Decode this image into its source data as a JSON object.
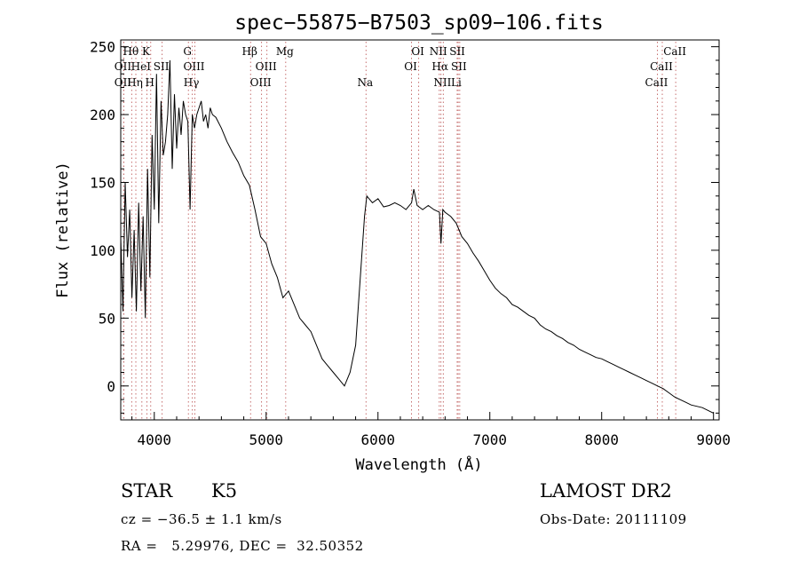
{
  "chart_data": {
    "type": "line",
    "title": "spec−55875−B7503_sp09−106.fits",
    "xlabel": "Wavelength (Å)",
    "ylabel": "Flux (relative)",
    "xlim": [
      3700,
      9050
    ],
    "ylim": [
      -25,
      255
    ],
    "x_ticks": [
      4000,
      5000,
      6000,
      7000,
      8000,
      9000
    ],
    "y_ticks": [
      0,
      50,
      100,
      150,
      200,
      250
    ],
    "grid": false,
    "series": [
      {
        "color": "#000000",
        "x": [
          3700,
          3720,
          3740,
          3760,
          3780,
          3800,
          3820,
          3840,
          3860,
          3880,
          3900,
          3920,
          3940,
          3960,
          3980,
          4000,
          4020,
          4040,
          4060,
          4080,
          4100,
          4120,
          4140,
          4160,
          4180,
          4200,
          4220,
          4240,
          4260,
          4280,
          4300,
          4320,
          4340,
          4360,
          4380,
          4400,
          4420,
          4440,
          4460,
          4480,
          4500,
          4520,
          4550,
          4600,
          4650,
          4700,
          4750,
          4800,
          4850,
          4900,
          4950,
          5000,
          5050,
          5100,
          5150,
          5200,
          5250,
          5300,
          5350,
          5400,
          5450,
          5500,
          5550,
          5600,
          5650,
          5700,
          5750,
          5800,
          5850,
          5880,
          5900,
          5920,
          5950,
          6000,
          6050,
          6100,
          6150,
          6200,
          6250,
          6300,
          6320,
          6350,
          6400,
          6450,
          6500,
          6550,
          6563,
          6580,
          6600,
          6650,
          6700,
          6750,
          6800,
          6850,
          6900,
          6950,
          7000,
          7050,
          7100,
          7150,
          7200,
          7250,
          7300,
          7350,
          7400,
          7450,
          7500,
          7550,
          7600,
          7650,
          7700,
          7750,
          7800,
          7850,
          7900,
          7950,
          8000,
          8050,
          8100,
          8150,
          8200,
          8250,
          8300,
          8350,
          8400,
          8450,
          8500,
          8550,
          8600,
          8650,
          8700,
          8750,
          8800,
          8850,
          8900,
          8950,
          9000
        ],
        "y": [
          110,
          55,
          150,
          95,
          130,
          65,
          115,
          55,
          135,
          70,
          125,
          50,
          160,
          80,
          185,
          130,
          230,
          120,
          210,
          170,
          180,
          200,
          240,
          160,
          215,
          175,
          205,
          185,
          210,
          200,
          195,
          130,
          200,
          190,
          200,
          205,
          210,
          195,
          200,
          190,
          205,
          200,
          198,
          190,
          180,
          172,
          165,
          155,
          148,
          130,
          110,
          105,
          90,
          80,
          65,
          70,
          60,
          50,
          45,
          40,
          30,
          20,
          15,
          10,
          5,
          0,
          10,
          30,
          90,
          125,
          140,
          138,
          135,
          138,
          132,
          133,
          135,
          133,
          130,
          135,
          145,
          133,
          130,
          133,
          130,
          128,
          105,
          130,
          128,
          125,
          120,
          110,
          105,
          98,
          92,
          85,
          78,
          72,
          68,
          65,
          60,
          58,
          55,
          52,
          50,
          45,
          42,
          40,
          37,
          35,
          32,
          30,
          27,
          25,
          23,
          21,
          20,
          18,
          16,
          14,
          12,
          10,
          8,
          6,
          4,
          2,
          0,
          -2,
          -5,
          -8,
          -10,
          -12,
          -14,
          -15,
          -16,
          -18,
          -20
        ]
      }
    ],
    "lines": [
      {
        "label": "Hθ",
        "wl": 3798,
        "row": 0
      },
      {
        "label": "K",
        "wl": 3934,
        "row": 0
      },
      {
        "label": "OII",
        "wl": 3727,
        "row": 1
      },
      {
        "label": "HeI",
        "wl": 3889,
        "row": 1
      },
      {
        "label": "SII",
        "wl": 4070,
        "row": 1
      },
      {
        "label": "OII",
        "wl": 3727,
        "row": 2
      },
      {
        "label": "Hη",
        "wl": 3835,
        "row": 2
      },
      {
        "label": "H",
        "wl": 3968,
        "row": 2
      },
      {
        "label": "G",
        "wl": 4305,
        "row": 0
      },
      {
        "label": "OIII",
        "wl": 4363,
        "row": 1
      },
      {
        "label": "Hγ",
        "wl": 4340,
        "row": 2
      },
      {
        "label": "Hβ",
        "wl": 4861,
        "row": 0
      },
      {
        "label": "OIII",
        "wl": 5007,
        "row": 1
      },
      {
        "label": "OIII",
        "wl": 4959,
        "row": 2
      },
      {
        "label": "Mg",
        "wl": 5175,
        "row": 0
      },
      {
        "label": "Na",
        "wl": 5893,
        "row": 2
      },
      {
        "label": "OI",
        "wl": 6364,
        "row": 0
      },
      {
        "label": "OI",
        "wl": 6300,
        "row": 1
      },
      {
        "label": "NII",
        "wl": 6548,
        "row": 0
      },
      {
        "label": "SII",
        "wl": 6717,
        "row": 0
      },
      {
        "label": "Hα",
        "wl": 6563,
        "row": 1
      },
      {
        "label": "SII",
        "wl": 6731,
        "row": 1
      },
      {
        "label": "NII",
        "wl": 6584,
        "row": 2
      },
      {
        "label": "Li",
        "wl": 6708,
        "row": 2
      },
      {
        "label": "CaII",
        "wl": 8662,
        "row": 0
      },
      {
        "label": "CaII",
        "wl": 8542,
        "row": 1
      },
      {
        "label": "CaII",
        "wl": 8498,
        "row": 2
      }
    ]
  },
  "info": {
    "class_label": "STAR",
    "subclass": "K5",
    "survey": "LAMOST DR2",
    "cz_text": "cz = −36.5 ± 1.1 km/s",
    "obs_date": "Obs-Date: 20111109",
    "coords": "RA =   5.29976, DEC =  32.50352"
  }
}
